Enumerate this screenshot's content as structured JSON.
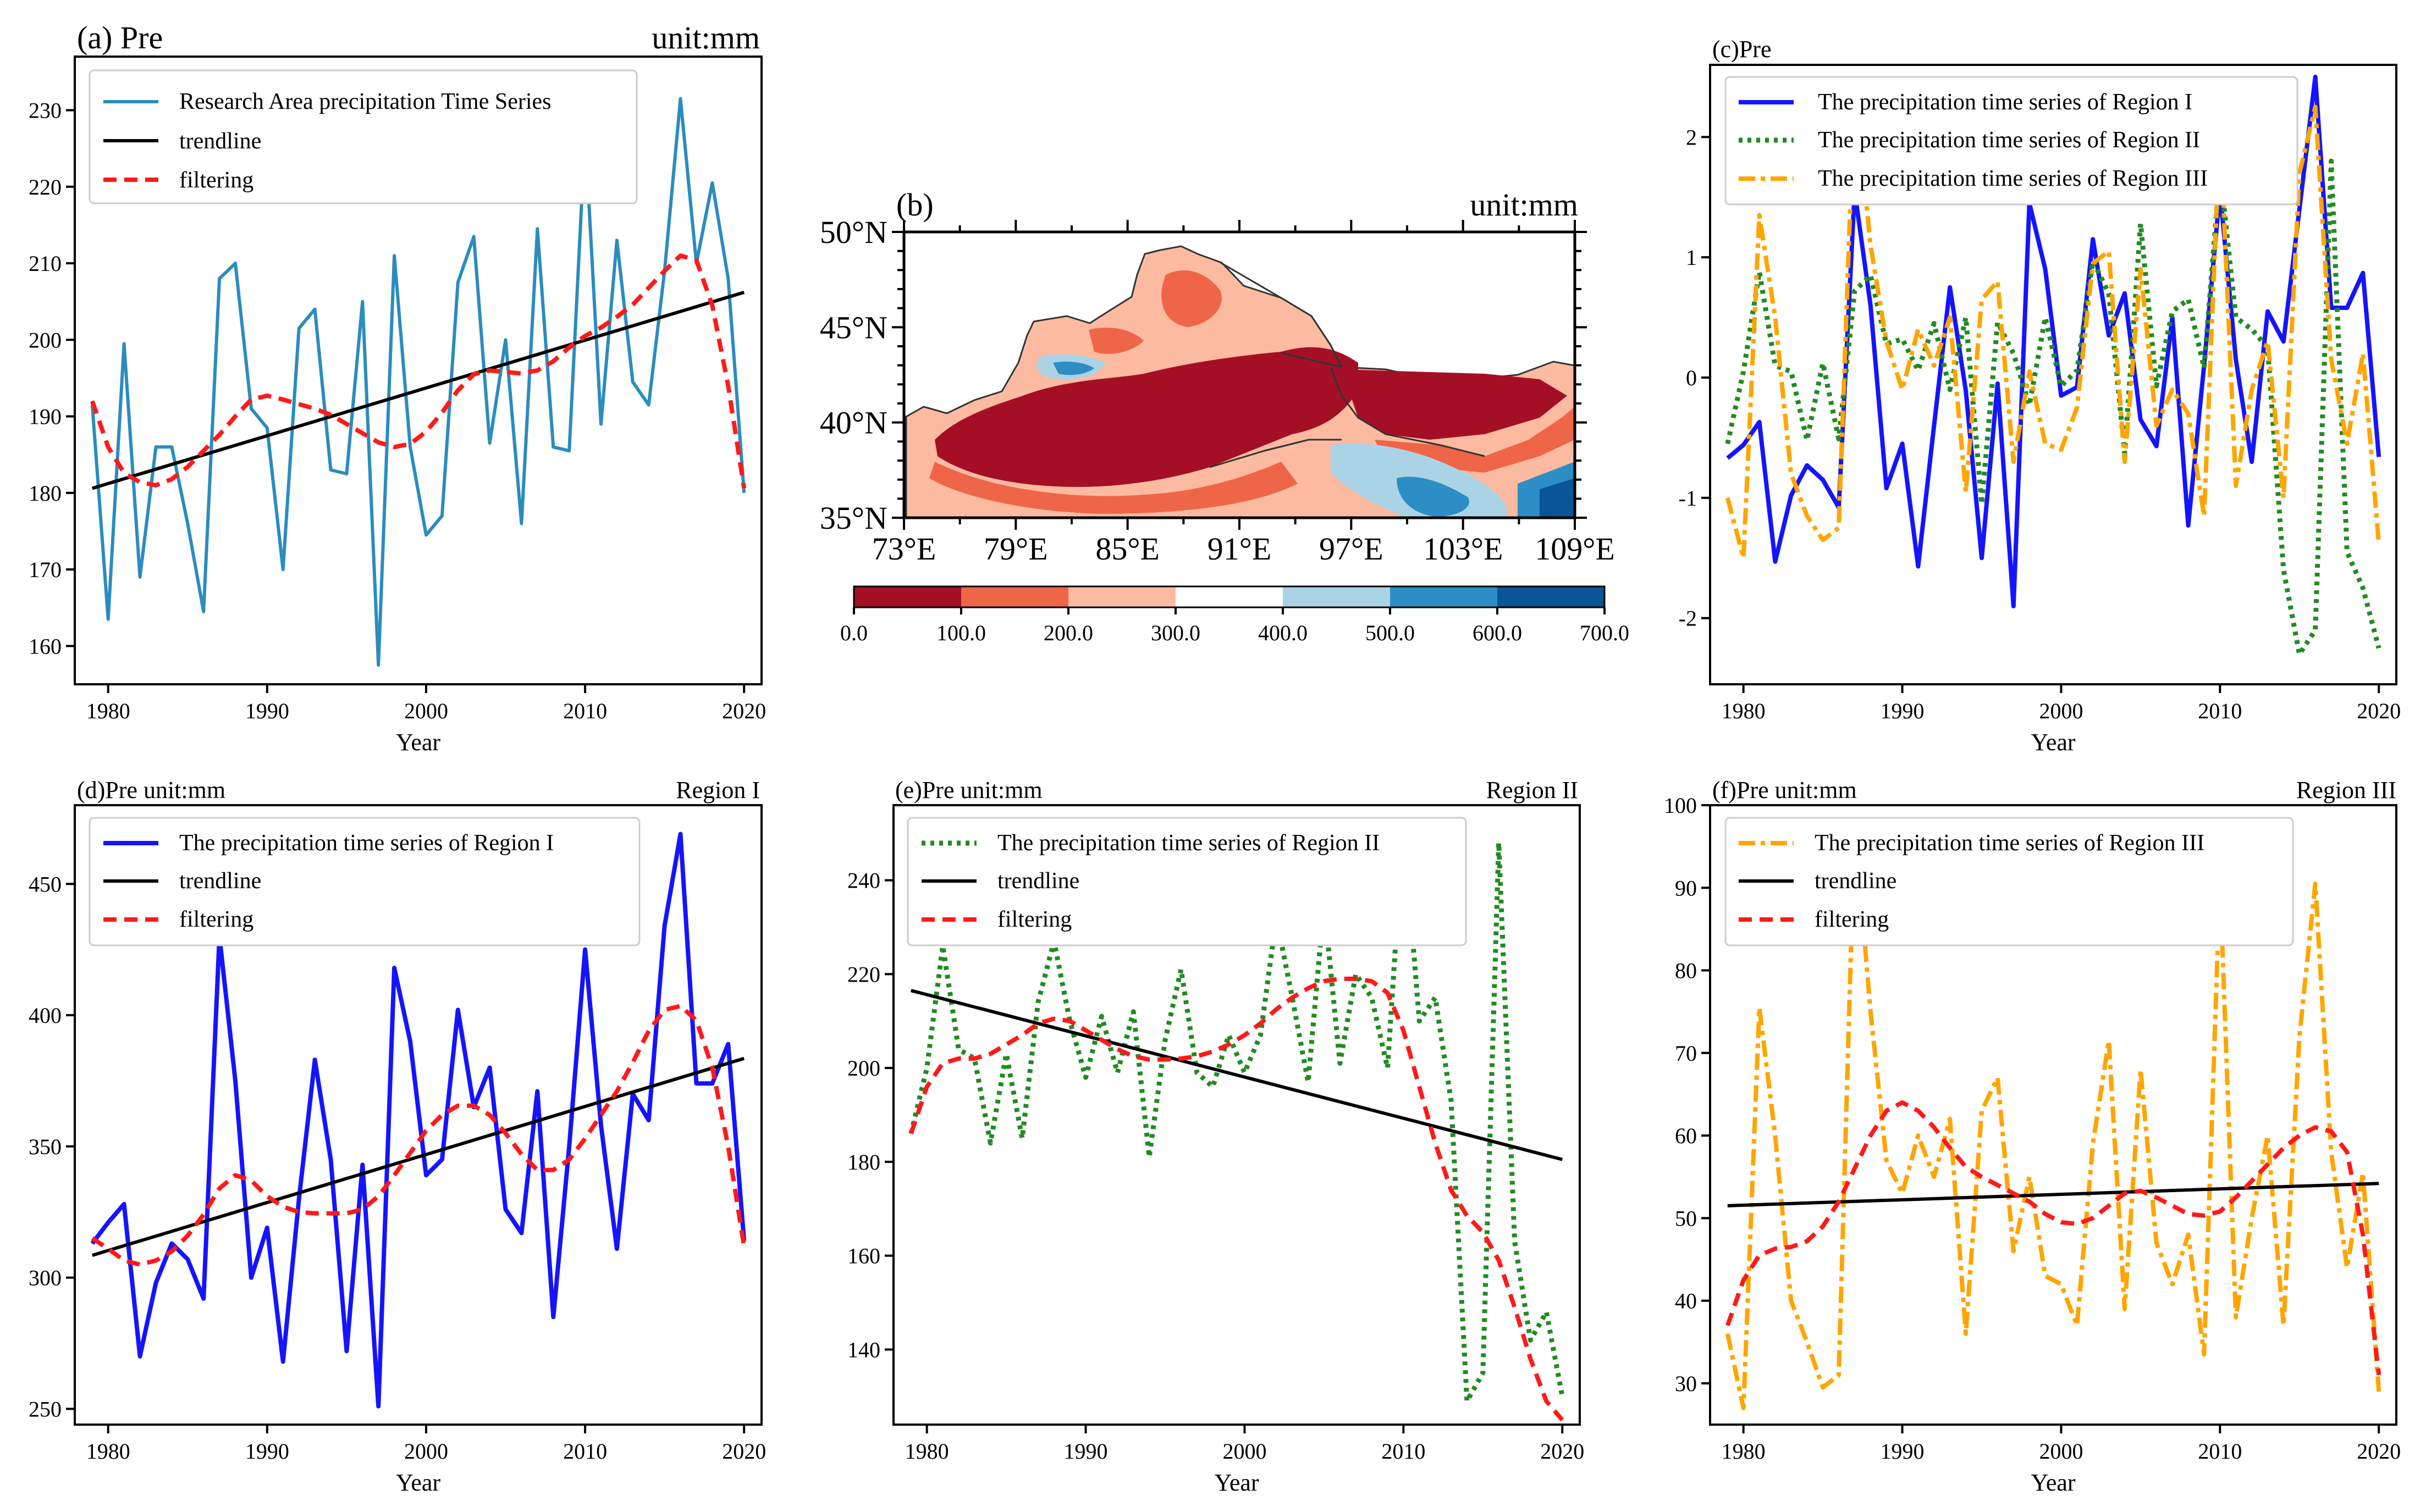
{
  "colors": {
    "research": "#2b8cbe",
    "region1": "#1414ff",
    "region2": "#228b22",
    "region3": "#ffa500",
    "trend": "#000000",
    "filter": "#ff1a1a",
    "map_scale": [
      "#a50f26",
      "#ef6548",
      "#fcbba1",
      "#ffffff",
      "#abd3e6",
      "#2c8ec4",
      "#0a5596"
    ]
  },
  "chart_data": [
    {
      "id": "a",
      "type": "line",
      "title_left": "(a) Pre",
      "title_right": "unit:mm",
      "xlabel": "Year",
      "xlim": [
        1977.9,
        2021.1
      ],
      "ylim": [
        155,
        237
      ],
      "xticks": [
        1980,
        1990,
        2000,
        2010,
        2020
      ],
      "yticks": [
        160,
        170,
        180,
        190,
        200,
        210,
        220,
        230
      ],
      "legend": [
        "Research Area precipitation Time Series",
        "trendline",
        "filtering"
      ],
      "x": [
        1979,
        1980,
        1981,
        1982,
        1983,
        1984,
        1985,
        1986,
        1987,
        1988,
        1989,
        1990,
        1991,
        1992,
        1993,
        1994,
        1995,
        1996,
        1997,
        1998,
        1999,
        2000,
        2001,
        2002,
        2003,
        2004,
        2005,
        2006,
        2007,
        2008,
        2009,
        2010,
        2011,
        2012,
        2013,
        2014,
        2015,
        2016,
        2017,
        2018,
        2019,
        2020
      ],
      "series": [
        {
          "name": "Research Area precipitation Time Series",
          "values": [
            191.5,
            163.5,
            199.5,
            169,
            186,
            186,
            176,
            164.5,
            208,
            210,
            191,
            188.5,
            170,
            201.5,
            204,
            183,
            182.5,
            205,
            157.5,
            211,
            186,
            174.5,
            177,
            207.5,
            213.5,
            186.5,
            200,
            176,
            214.5,
            186,
            185.5,
            227,
            189,
            213,
            194.5,
            191.5,
            209,
            231.5,
            210,
            220.5,
            208,
            180
          ]
        },
        {
          "name": "trendline",
          "values": [
            180.6,
            206.2
          ],
          "x": [
            1979,
            2020
          ]
        },
        {
          "name": "filtering",
          "values": [
            192,
            186,
            182.6,
            181.4,
            181,
            181.8,
            183.4,
            185.5,
            187.6,
            190,
            192.2,
            192.7,
            192.2,
            191.6,
            191,
            190.2,
            189,
            187.8,
            186.6,
            186,
            186.4,
            188,
            190.5,
            193.4,
            195.5,
            196,
            195.8,
            195.6,
            196,
            197.2,
            199,
            200.5,
            201.6,
            203,
            204.6,
            206.8,
            209,
            211,
            210.4,
            204.5,
            194,
            180.6
          ]
        }
      ]
    },
    {
      "id": "b",
      "type": "heatmap",
      "title_left": "(b)",
      "title_right": "unit:mm",
      "xticks": [
        "73°E",
        "79°E",
        "85°E",
        "91°E",
        "97°E",
        "103°E",
        "109°E"
      ],
      "yticks": [
        "50°N",
        "45°N",
        "40°N",
        "35°N"
      ],
      "colorbar_ticks": [
        "0.0",
        "100.0",
        "200.0",
        "300.0",
        "400.0",
        "500.0",
        "600.0",
        "700.0"
      ]
    },
    {
      "id": "c",
      "type": "line",
      "title_left": "(c)Pre",
      "title_right": "",
      "xlabel": "Year",
      "xlim": [
        1977.9,
        2021.1
      ],
      "ylim": [
        -2.55,
        2.6
      ],
      "xticks": [
        1980,
        1990,
        2000,
        2010,
        2020
      ],
      "yticks": [
        -2,
        -1,
        0,
        1,
        2
      ],
      "legend": [
        "The precipitation time series of Region I",
        "The precipitation time series of Region II",
        "The precipitation time series of Region III"
      ],
      "x": [
        1979,
        1980,
        1981,
        1982,
        1983,
        1984,
        1985,
        1986,
        1987,
        1988,
        1989,
        1990,
        1991,
        1992,
        1993,
        1994,
        1995,
        1996,
        1997,
        1998,
        1999,
        2000,
        2001,
        2002,
        2003,
        2004,
        2005,
        2006,
        2007,
        2008,
        2009,
        2010,
        2011,
        2012,
        2013,
        2014,
        2015,
        2016,
        2017,
        2018,
        2019,
        2020
      ],
      "series": [
        {
          "name": "The precipitation time series of Region I",
          "values": [
            -0.67,
            -0.56,
            -0.37,
            -1.53,
            -0.98,
            -0.73,
            -0.85,
            -1.08,
            1.55,
            0.6,
            -0.92,
            -0.55,
            -1.57,
            -0.4,
            0.75,
            -0.11,
            -1.5,
            -0.05,
            -1.9,
            1.45,
            0.9,
            -0.15,
            -0.08,
            1.15,
            0.35,
            0.7,
            -0.35,
            -0.57,
            0.5,
            -1.23,
            0.1,
            1.55,
            0.15,
            -0.7,
            0.55,
            0.3,
            1.4,
            2.5,
            0.58,
            0.58,
            0.87,
            -0.66
          ]
        },
        {
          "name": "The precipitation time series of Region II",
          "values": [
            -0.55,
            0.05,
            0.88,
            0.1,
            0.05,
            -0.52,
            0.12,
            -0.51,
            0.72,
            0.85,
            0.28,
            0.32,
            0.06,
            0.45,
            -0.1,
            0.5,
            -1.05,
            0.46,
            0.2,
            -0.23,
            0.5,
            -0.07,
            0.06,
            0.97,
            0.7,
            -0.63,
            1.28,
            -0.07,
            0.55,
            0.65,
            0.08,
            1.73,
            0.5,
            0.4,
            0.25,
            -1.6,
            -2.3,
            -2.1,
            1.8,
            -1.45,
            -1.75,
            -2.25
          ]
        },
        {
          "name": "The precipitation time series of Region III",
          "values": [
            -1.0,
            -1.5,
            1.35,
            0.5,
            -0.8,
            -1.15,
            -1.35,
            -1.25,
            2.45,
            1.1,
            0.3,
            -0.1,
            0.4,
            0.1,
            0.5,
            -0.95,
            0.65,
            0.8,
            -0.7,
            0.05,
            -0.55,
            -0.6,
            -0.25,
            0.95,
            1.05,
            -0.7,
            0.9,
            -0.4,
            -0.1,
            -0.3,
            -1.15,
            2.1,
            -0.9,
            -0.1,
            0.3,
            -1.0,
            1.7,
            2.25,
            0.15,
            -0.55,
            0.2,
            -1.38
          ]
        }
      ]
    },
    {
      "id": "d",
      "type": "line",
      "title_left": "(d)Pre unit:mm",
      "title_right": "Region I",
      "xlabel": "Year",
      "xlim": [
        1977.9,
        2021.1
      ],
      "ylim": [
        244,
        480
      ],
      "xticks": [
        1980,
        1990,
        2000,
        2010,
        2020
      ],
      "yticks": [
        250,
        300,
        350,
        400,
        450
      ],
      "legend": [
        "The precipitation time series of Region I",
        "trendline",
        "filtering"
      ],
      "x": [
        1979,
        1980,
        1981,
        1982,
        1983,
        1984,
        1985,
        1986,
        1987,
        1988,
        1989,
        1990,
        1991,
        1992,
        1993,
        1994,
        1995,
        1996,
        1997,
        1998,
        1999,
        2000,
        2001,
        2002,
        2003,
        2004,
        2005,
        2006,
        2007,
        2008,
        2009,
        2010,
        2011,
        2012,
        2013,
        2014,
        2015,
        2016,
        2017,
        2018,
        2019,
        2020
      ],
      "series": [
        {
          "name": "The precipitation time series of Region I",
          "values": [
            313,
            321,
            328,
            270,
            298,
            313,
            307,
            292,
            430,
            375,
            300,
            319,
            268,
            330,
            383,
            345,
            272,
            343,
            251,
            418,
            390,
            339,
            345,
            402,
            365,
            380,
            326,
            317,
            371,
            285,
            350,
            425,
            358,
            311,
            370,
            360,
            434,
            469,
            374,
            374,
            389,
            314
          ]
        },
        {
          "name": "trendline",
          "values": [
            308.5,
            383.5
          ],
          "x": [
            1979,
            2020
          ]
        },
        {
          "name": "filtering",
          "values": [
            315,
            311,
            306.5,
            305,
            306.5,
            310,
            316,
            324,
            334,
            339,
            337,
            331,
            327,
            325,
            324.5,
            324.5,
            324.5,
            326,
            331,
            339,
            347.5,
            356,
            362,
            365.5,
            365.5,
            362,
            355,
            347,
            341,
            341,
            345,
            353,
            362,
            371,
            382,
            394,
            402,
            403.5,
            398,
            380,
            350,
            312
          ]
        }
      ]
    },
    {
      "id": "e",
      "type": "line",
      "title_left": "(e)Pre unit:mm",
      "title_right": "Region II",
      "xlabel": "Year",
      "xlim": [
        1977.9,
        2021.1
      ],
      "ylim": [
        124,
        256
      ],
      "xticks": [
        1980,
        1990,
        2000,
        2010,
        2020
      ],
      "yticks": [
        140,
        160,
        180,
        200,
        220,
        240
      ],
      "legend": [
        "The precipitation time series of Region II",
        "trendline",
        "filtering"
      ],
      "x": [
        1979,
        1980,
        1981,
        1982,
        1983,
        1984,
        1985,
        1986,
        1987,
        1988,
        1989,
        1990,
        1991,
        1992,
        1993,
        1994,
        1995,
        1996,
        1997,
        1998,
        1999,
        2000,
        2001,
        2002,
        2003,
        2004,
        2005,
        2006,
        2007,
        2008,
        2009,
        2010,
        2011,
        2012,
        2013,
        2014,
        2015,
        2016,
        2017,
        2018,
        2019,
        2020
      ],
      "series": [
        {
          "name": "The precipitation time series of Region II",
          "values": [
            186,
            200,
            226,
            204,
            202,
            184,
            203,
            185,
            214,
            227,
            210,
            198,
            211,
            199,
            212,
            181,
            206,
            221,
            199,
            196,
            207,
            199,
            207,
            232,
            215,
            197,
            235,
            201,
            220,
            215,
            200,
            252,
            210,
            215,
            193,
            129,
            135,
            248,
            163,
            142,
            148,
            130
          ]
        },
        {
          "name": "trendline",
          "values": [
            216.5,
            180.5
          ],
          "x": [
            1979,
            2020
          ]
        },
        {
          "name": "filtering",
          "values": [
            186,
            196,
            201,
            202,
            202,
            203,
            205,
            207,
            209.5,
            210.5,
            210,
            208,
            206,
            204,
            202.5,
            201.8,
            201.8,
            202,
            202.5,
            203.5,
            205,
            207,
            209.5,
            212.5,
            215,
            217,
            218.5,
            219,
            219,
            218.5,
            216,
            208,
            196,
            184,
            174,
            168.5,
            165,
            159,
            149,
            138,
            129,
            125
          ]
        }
      ]
    },
    {
      "id": "f",
      "type": "line",
      "title_left": "(f)Pre unit:mm",
      "title_right": "Region III",
      "xlabel": "Year",
      "xlim": [
        1977.9,
        2021.1
      ],
      "ylim": [
        25,
        100
      ],
      "xticks": [
        1980,
        1990,
        2000,
        2010,
        2020
      ],
      "yticks": [
        30,
        40,
        50,
        60,
        70,
        80,
        90,
        100
      ],
      "legend": [
        "The precipitation time series of Region III",
        "trendline",
        "filtering"
      ],
      "x": [
        1979,
        1980,
        1981,
        1982,
        1983,
        1984,
        1985,
        1986,
        1987,
        1988,
        1989,
        1990,
        1991,
        1992,
        1993,
        1994,
        1995,
        1996,
        1997,
        1998,
        1999,
        2000,
        2001,
        2002,
        2003,
        2004,
        2005,
        2006,
        2007,
        2008,
        2009,
        2010,
        2011,
        2012,
        2013,
        2014,
        2015,
        2016,
        2017,
        2018,
        2019,
        2020
      ],
      "series": [
        {
          "name": "The precipitation time series of Region III",
          "values": [
            36,
            27,
            75.5,
            60,
            40,
            35,
            29.5,
            31,
            98,
            75,
            57,
            53,
            60,
            55,
            62,
            36,
            63,
            67,
            46,
            55,
            43,
            42,
            37,
            59,
            71.5,
            39,
            68,
            47,
            42,
            48,
            33.5,
            91,
            38,
            50,
            60,
            37,
            72,
            90.5,
            58,
            44,
            55.5,
            29
          ]
        },
        {
          "name": "trendline",
          "values": [
            51.5,
            54.2
          ],
          "x": [
            1979,
            2020
          ]
        },
        {
          "name": "filtering",
          "values": [
            37,
            42.5,
            45.5,
            46.3,
            46.5,
            47.2,
            49,
            52,
            56,
            60,
            63,
            64,
            63,
            61,
            58.5,
            56.2,
            55,
            54,
            53,
            52,
            50.5,
            49.5,
            49.3,
            50,
            51.5,
            53,
            53.3,
            52.5,
            51.5,
            50.5,
            50.3,
            50.8,
            52.5,
            54.5,
            56.5,
            58.5,
            60,
            61,
            60.5,
            58,
            48,
            31
          ]
        }
      ]
    }
  ]
}
